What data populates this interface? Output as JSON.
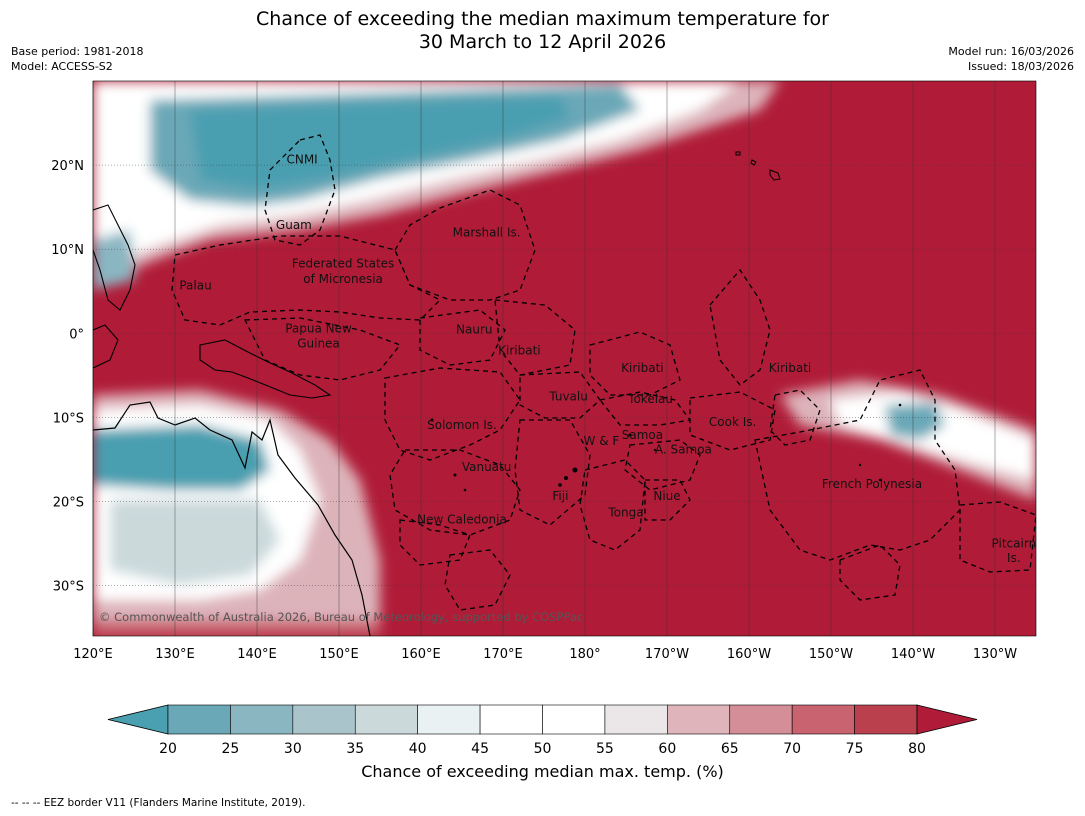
{
  "title": {
    "line1": "Chance of exceeding the median maximum temperature for",
    "line2": "30 March to 12 April 2026"
  },
  "meta_left": {
    "base_period": "Base period: 1981-2018",
    "model": "Model: ACCESS-S2"
  },
  "meta_right": {
    "model_run": "Model run: 16/03/2026",
    "issued": "Issued: 18/03/2026"
  },
  "map": {
    "lon_range": [
      120,
      235
    ],
    "lat_range": [
      -36,
      30
    ],
    "background_color": "#b01c38",
    "coast_color": "#000000",
    "lon_ticks": [
      {
        "lon": 120,
        "label": "120°E"
      },
      {
        "lon": 130,
        "label": "130°E"
      },
      {
        "lon": 140,
        "label": "140°E"
      },
      {
        "lon": 150,
        "label": "150°E"
      },
      {
        "lon": 160,
        "label": "160°E"
      },
      {
        "lon": 170,
        "label": "170°E"
      },
      {
        "lon": 180,
        "label": "180°"
      },
      {
        "lon": 190,
        "label": "170°W"
      },
      {
        "lon": 200,
        "label": "160°W"
      },
      {
        "lon": 210,
        "label": "150°W"
      },
      {
        "lon": 220,
        "label": "140°W"
      },
      {
        "lon": 230,
        "label": "130°W"
      }
    ],
    "lat_ticks": [
      {
        "lat": 20,
        "label": "20°N"
      },
      {
        "lat": 10,
        "label": "10°N"
      },
      {
        "lat": 0,
        "label": "0°"
      },
      {
        "lat": -10,
        "label": "10°S"
      },
      {
        "lat": -20,
        "label": "20°S"
      },
      {
        "lat": -30,
        "label": "30°S"
      }
    ],
    "region_labels": [
      {
        "text": "CNMI",
        "lon": 145.5,
        "lat": 20.2
      },
      {
        "text": "Guam",
        "lon": 144.5,
        "lat": 12.4
      },
      {
        "text": "Marshall Is.",
        "lon": 168,
        "lat": 11.5
      },
      {
        "text": "Federated States",
        "lon": 150.5,
        "lat": 7.8
      },
      {
        "text": "of Micronesia",
        "lon": 150.5,
        "lat": 6.0
      },
      {
        "text": "Palau",
        "lon": 132.5,
        "lat": 5.2
      },
      {
        "text": "Papua New",
        "lon": 147.5,
        "lat": 0.1
      },
      {
        "text": "Guinea",
        "lon": 147.5,
        "lat": -1.7
      },
      {
        "text": "Nauru",
        "lon": 166.5,
        "lat": 0.0
      },
      {
        "text": "Kiribati",
        "lon": 172,
        "lat": -2.5
      },
      {
        "text": "Kiribati",
        "lon": 187,
        "lat": -4.6
      },
      {
        "text": "Kiribati",
        "lon": 205,
        "lat": -4.6
      },
      {
        "text": "Tuvalu",
        "lon": 178,
        "lat": -8.0
      },
      {
        "text": "Tokelau",
        "lon": 188,
        "lat": -8.3
      },
      {
        "text": "Cook Is.",
        "lon": 198,
        "lat": -11.0
      },
      {
        "text": "Solomon Is.",
        "lon": 165,
        "lat": -11.4
      },
      {
        "text": "Samoa",
        "lon": 187,
        "lat": -12.6
      },
      {
        "text": "W & F",
        "lon": 182,
        "lat": -13.3
      },
      {
        "text": "A. Samoa",
        "lon": 192,
        "lat": -14.3
      },
      {
        "text": "Vanuatu",
        "lon": 168,
        "lat": -16.4
      },
      {
        "text": "French Polynesia",
        "lon": 215,
        "lat": -18.4
      },
      {
        "text": "Fiji",
        "lon": 177,
        "lat": -19.8
      },
      {
        "text": "Niue",
        "lon": 190,
        "lat": -19.8
      },
      {
        "text": "Tonga",
        "lon": 185,
        "lat": -21.8
      },
      {
        "text": "New Caledonia",
        "lon": 165,
        "lat": -22.6
      },
      {
        "text": "Pitcairn",
        "lon": 232.3,
        "lat": -25.5
      },
      {
        "text": "Is.",
        "lon": 232.3,
        "lat": -27.2
      }
    ],
    "copyright": "© Commonwealth of Australia 2026, Bureau of Meteorology, supported by COSPPac"
  },
  "colorbar": {
    "ticks": [
      "20",
      "25",
      "30",
      "35",
      "40",
      "45",
      "50",
      "55",
      "60",
      "65",
      "70",
      "75",
      "80"
    ],
    "colors": [
      "#4a9fb0",
      "#6aa8b8",
      "#8ab6c2",
      "#a9c5cb",
      "#cbd9db",
      "#eaf1f2",
      "#ffffff",
      "#ffffff",
      "#ebe6e7",
      "#dfb5bb",
      "#d48e98",
      "#c8636f",
      "#bb404e",
      "#b01c38"
    ],
    "title": "Chance of exceeding median max. temp. (%)"
  },
  "footnote": "--  --  -- EEZ border V11 (Flanders Marine Institute, 2019)."
}
